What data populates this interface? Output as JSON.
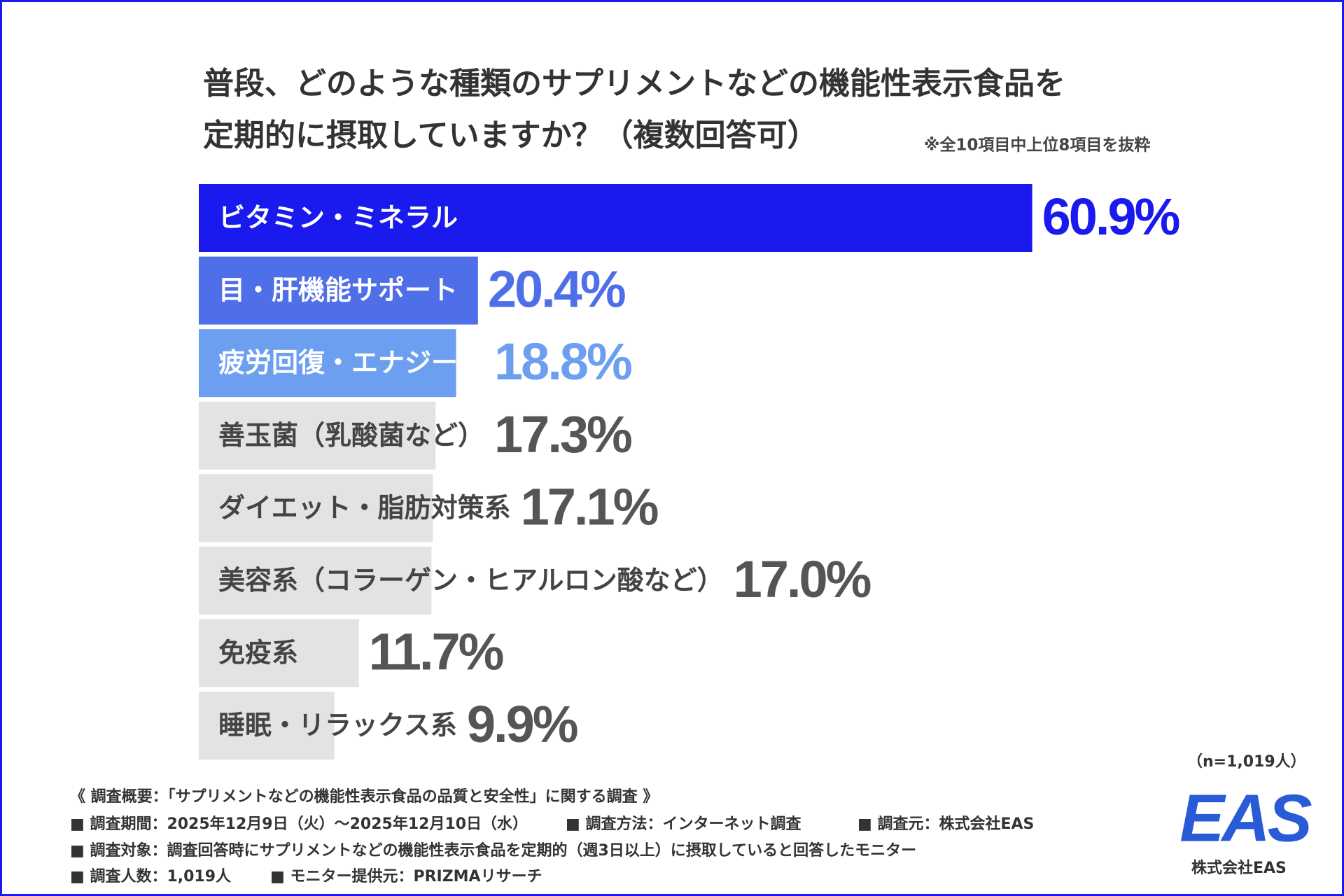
{
  "chart_data": {
    "type": "bar",
    "orientation": "horizontal",
    "title": [
      "普段、どのような種類のサプリメントなどの機能性表示食品を",
      "定期的に摂取していますか？（複数回答可）"
    ],
    "note": "※全10項目中上位8項目を抜粋",
    "categories": [
      "ビタミン・ミネラル",
      "目・肝機能サポート",
      "疲労回復・エナジー系",
      "善玉菌（乳酸菌など）",
      "ダイエット・脂肪対策系",
      "美容系（コラーゲン・ヒアルロン酸など）",
      "免疫系",
      "睡眠・リラックス系"
    ],
    "values": [
      60.9,
      20.4,
      18.8,
      17.3,
      17.1,
      17.0,
      11.7,
      9.9
    ],
    "value_labels": [
      "60.9%",
      "20.4%",
      "18.8%",
      "17.3%",
      "17.1%",
      "17.0%",
      "11.7%",
      "9.9%"
    ],
    "colors": [
      "#1a1aee",
      "#4f6fe8",
      "#6d9ff0",
      "#e3e3e3",
      "#e3e3e3",
      "#e3e3e3",
      "#e3e3e3",
      "#e3e3e3"
    ],
    "category_label_colors": [
      "#ffffff",
      "#ffffff",
      "#ffffff",
      "#444444",
      "#444444",
      "#444444",
      "#444444",
      "#444444"
    ],
    "value_label_colors": [
      "#1a1aee",
      "#4f6fe8",
      "#6d9ff0",
      "#555555",
      "#555555",
      "#555555",
      "#555555",
      "#555555"
    ],
    "sample_size": "（n=1,019人）"
  },
  "footer": {
    "heading": "《 調査概要：「サプリメントなどの機能性表示食品の品質と安全性」に関する調査 》",
    "rows": [
      [
        "■ 調査期間：2025年12月9日（火）～2025年12月10日（水）",
        "■ 調査方法：インターネット調査",
        "■ 調査元：株式会社EAS"
      ],
      [
        "■ 調査対象：調査回答時にサプリメントなどの機能性表示食品を定期的（週3日以上）に摂取していると回答したモニター"
      ],
      [
        "■ 調査人数：1,019人",
        "■ モニター提供元：PRIZMAリサーチ"
      ]
    ]
  },
  "logo": {
    "mark": "EAS",
    "company": "株式会社EAS"
  }
}
